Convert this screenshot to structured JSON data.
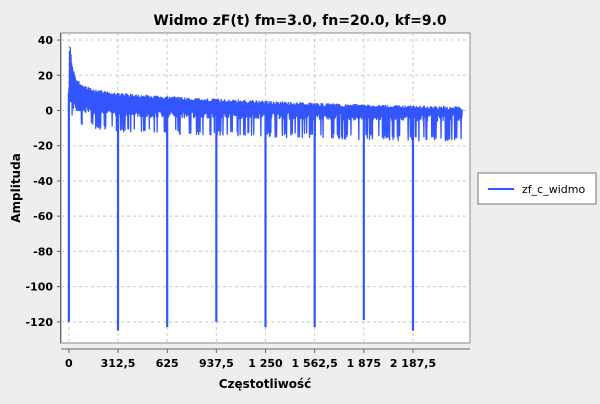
{
  "chart_data": {
    "type": "line",
    "title": "Widmo zF(t) fm=3.0, fn=20.0, kf=9.0",
    "xlabel": "Częstotliwość",
    "ylabel": "Amplituda",
    "xlim": [
      -50,
      2550
    ],
    "ylim": [
      -132,
      44
    ],
    "x_ticks": [
      {
        "value": 0,
        "label": "0"
      },
      {
        "value": 312.5,
        "label": "312,5"
      },
      {
        "value": 625,
        "label": "625"
      },
      {
        "value": 937.5,
        "label": "937,5"
      },
      {
        "value": 1250,
        "label": "1 250"
      },
      {
        "value": 1562.5,
        "label": "1 562,5"
      },
      {
        "value": 1875,
        "label": "1 875"
      },
      {
        "value": 2187.5,
        "label": "2 187,5"
      }
    ],
    "y_ticks": [
      {
        "value": 40,
        "label": "40"
      },
      {
        "value": 20,
        "label": "20"
      },
      {
        "value": 0,
        "label": "0"
      },
      {
        "value": -20,
        "label": "-20"
      },
      {
        "value": -40,
        "label": "-40"
      },
      {
        "value": -60,
        "label": "-60"
      },
      {
        "value": -80,
        "label": "-80"
      },
      {
        "value": -100,
        "label": "-100"
      },
      {
        "value": -120,
        "label": "-120"
      }
    ],
    "grid": true,
    "legend_position": "right",
    "series": [
      {
        "name": "zf_c_widmo",
        "color": "#3355ff",
        "envelope_x": [
          0,
          5,
          10,
          20,
          40,
          80,
          150,
          300,
          500,
          800,
          1200,
          1600,
          2000,
          2500
        ],
        "envelope_upper": [
          14,
          36,
          36,
          26,
          19,
          15,
          12,
          10,
          8.5,
          7,
          5.5,
          4,
          3,
          2
        ],
        "envelope_lower": [
          -5,
          5,
          -2,
          -4,
          -6,
          -8,
          -10,
          -12,
          -13,
          -14,
          -15,
          -16,
          -17,
          -18
        ],
        "notches": [
          {
            "x": 0,
            "y": -120
          },
          {
            "x": 312.5,
            "y": -125
          },
          {
            "x": 625,
            "y": -123
          },
          {
            "x": 937.5,
            "y": -120
          },
          {
            "x": 1250,
            "y": -123
          },
          {
            "x": 1562.5,
            "y": -123
          },
          {
            "x": 1875,
            "y": -119
          },
          {
            "x": 2187.5,
            "y": -125
          }
        ],
        "x_end": 2500
      }
    ]
  }
}
